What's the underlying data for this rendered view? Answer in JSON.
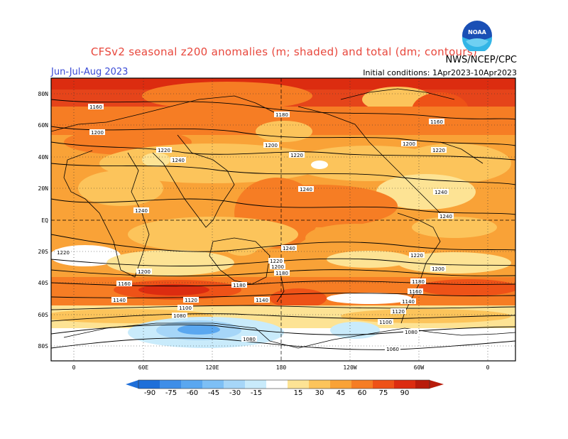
{
  "title": "CFSv2 seasonal z200 anomalies (m; shaded) and total (dm; contours)",
  "period": "Jun-Jul-Aug 2023",
  "agency": "NWS/NCEP/CPC",
  "initial_conditions": "Initial conditions: 1Apr2023-10Apr2023",
  "logo_text": "NOAA",
  "lat_labels": [
    "80N",
    "60N",
    "40N",
    "20N",
    "EQ",
    "20S",
    "40S",
    "60S",
    "80S"
  ],
  "lon_labels": [
    "0",
    "60E",
    "120E",
    "180",
    "120W",
    "60W",
    "0"
  ],
  "colorbar": {
    "labels": [
      "-90",
      "-75",
      "-60",
      "-45",
      "-30",
      "-15",
      "15",
      "30",
      "45",
      "60",
      "75",
      "90"
    ],
    "colors": [
      "#1e6fd9",
      "#3e8ee8",
      "#5aa7f0",
      "#7dbff5",
      "#a6d6f8",
      "#c9ebfb",
      "#ffffff",
      "#fde394",
      "#fcc45b",
      "#f9a237",
      "#f67d24",
      "#ee5217",
      "#dc2c10",
      "#b81b0b"
    ]
  },
  "contour_labels": [
    "1160",
    "1180",
    "1200",
    "1220",
    "1240",
    "1240",
    "1220",
    "1200",
    "1180",
    "1160",
    "1140",
    "1120",
    "1100",
    "1080",
    "1060"
  ]
}
